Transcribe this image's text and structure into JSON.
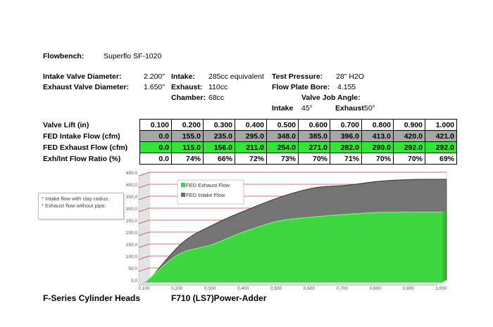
{
  "specs": {
    "flowbench_label": "Flowbench:",
    "flowbench_value": "Superflo SF-1020",
    "intake_valve_label": "Intake Valve Diameter:",
    "intake_valve_value": "2.200\"",
    "exhaust_valve_label": "Exhaust Valve Diameter:",
    "exhaust_valve_value": "1.650\"",
    "intake_label": "Intake:",
    "intake_value": "285cc equivalent",
    "exhaust_label": "Exhaust:",
    "exhaust_value": "110cc",
    "chamber_label": "Chamber:",
    "chamber_value": "68cc",
    "test_pressure_label": "Test Pressure:",
    "test_pressure_value": "28\" H2O",
    "flow_plate_label": "Flow Plate Bore:",
    "flow_plate_value": "4.155",
    "valve_job_label": "Valve Job Angle:",
    "vj_intake_label": "Intake",
    "vj_intake_value": "45°",
    "vj_exhaust_label": "Exhaust",
    "vj_exhaust_value": "50°"
  },
  "table": {
    "rows": [
      {
        "label": "Valve Lift (in)",
        "cells": [
          "0.100",
          "0.200",
          "0.300",
          "0.400",
          "0.500",
          "0.600",
          "0.700",
          "0.800",
          "0.900",
          "1.000"
        ]
      },
      {
        "label": "FED Intake Flow (cfm)",
        "cells": [
          "0.0",
          "155.0",
          "235.0",
          "295.0",
          "348.0",
          "385.0",
          "396.0",
          "413.0",
          "420.0",
          "421.0"
        ]
      },
      {
        "label": "FED Exhaust Flow (cfm)",
        "cells": [
          "0.0",
          "115.0",
          "156.0",
          "211.0",
          "254.0",
          "271.0",
          "282.0",
          "290.0",
          "292.0",
          "292.0"
        ]
      },
      {
        "label": "Exh/Int Flow Ratio (%)",
        "cells": [
          "0.0",
          "74%",
          "66%",
          "72%",
          "73%",
          "70%",
          "71%",
          "70%",
          "70%",
          "69%"
        ]
      }
    ]
  },
  "notes": [
    "* Intake flow with clay radius.",
    "* Exhaust flow without pipe."
  ],
  "footer": {
    "left": "F-Series Cylinder Heads",
    "right": "F710 (LS7)Power-Adder"
  },
  "chart_data": {
    "type": "area",
    "x": [
      0.1,
      0.2,
      0.3,
      0.4,
      0.5,
      0.6,
      0.7,
      0.8,
      0.9,
      1.0
    ],
    "x_ticks": [
      "0,100",
      "0,200",
      "0,300",
      "0,400",
      "0,500",
      "0,600",
      "0,700",
      "0,800",
      "0,900",
      "1,000"
    ],
    "y_ticks": [
      "0,0",
      "50,0",
      "100,0",
      "150,0",
      "200,0",
      "250,0",
      "300,0",
      "350,0",
      "400,0",
      "450,0"
    ],
    "ylim": [
      0,
      450
    ],
    "xlim": [
      0.1,
      1.0
    ],
    "series": [
      {
        "name": "FED Intake Flow",
        "values": [
          0,
          155,
          235,
          295,
          348,
          385,
          396,
          413,
          420,
          421
        ],
        "color": "#6e6e6e"
      },
      {
        "name": "FED Exhaust Flow",
        "values": [
          0,
          115,
          156,
          211,
          254,
          271,
          282,
          290,
          292,
          292
        ],
        "color": "#3ed63e"
      }
    ],
    "legend_position": "top-left",
    "grid": true,
    "grid_color": "#d04040"
  }
}
